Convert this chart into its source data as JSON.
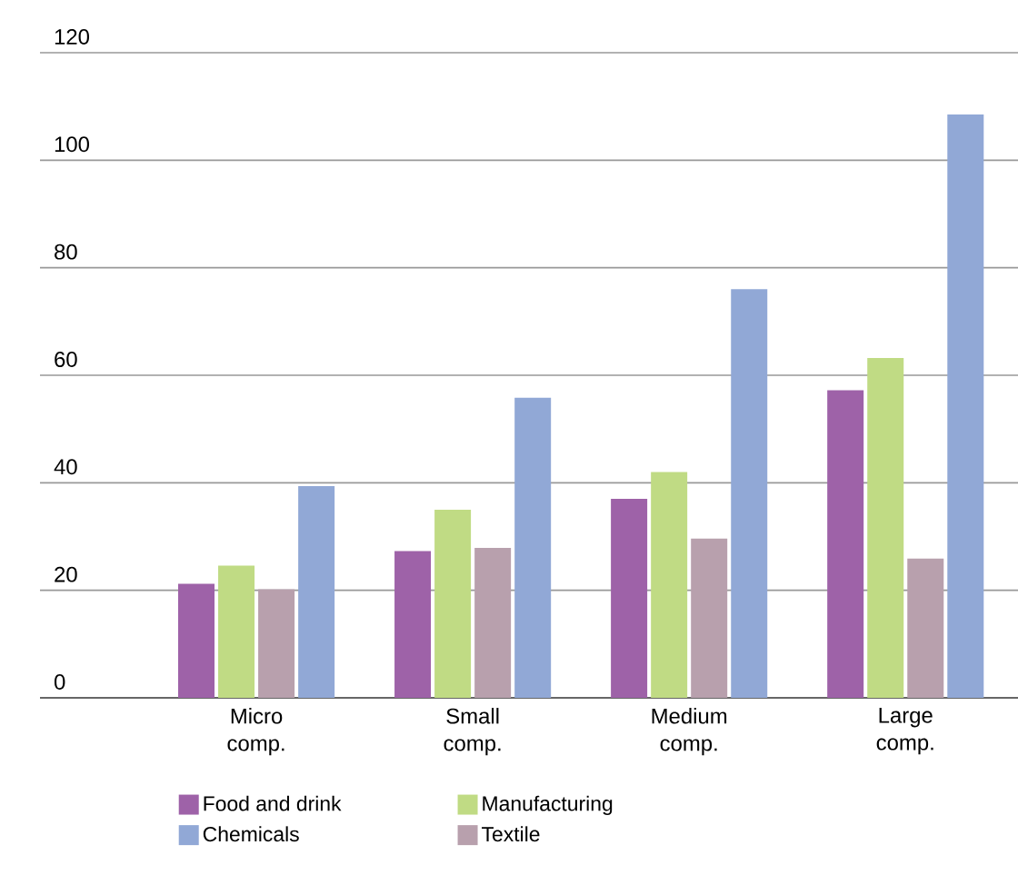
{
  "chart_data": {
    "type": "bar",
    "categories": [
      "Micro comp.",
      "Small comp.",
      "Medium comp.",
      "Large comp."
    ],
    "series": [
      {
        "name": "Food and drink",
        "color": "#9e62a8",
        "values": [
          21.2,
          27.3,
          37,
          57.2
        ]
      },
      {
        "name": "Manufacturing",
        "color": "#c0db84",
        "values": [
          24.6,
          35,
          42,
          63.2
        ]
      },
      {
        "name": "Textile",
        "color": "#b8a0ad",
        "values": [
          20.2,
          27.9,
          29.6,
          25.9
        ]
      },
      {
        "name": "Chemicals",
        "color": "#91a8d6",
        "values": [
          39.4,
          55.8,
          76,
          108.5
        ]
      }
    ],
    "ylim": [
      0,
      120
    ],
    "yticks": [
      0,
      20,
      40,
      60,
      80,
      100,
      120
    ],
    "grid": "y",
    "legend": "bottom"
  }
}
